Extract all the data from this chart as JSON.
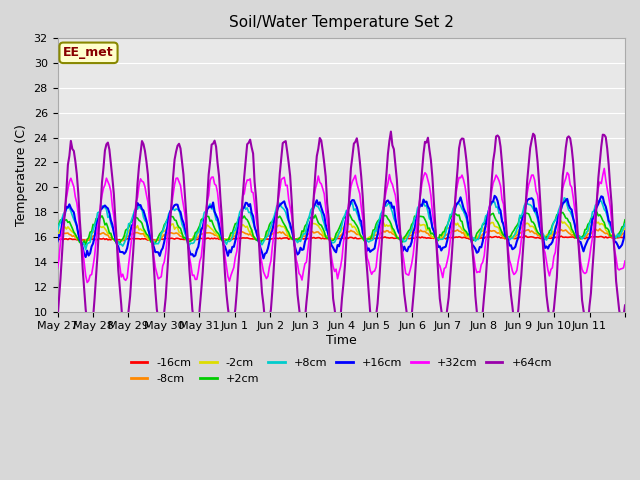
{
  "title": "Soil/Water Temperature Set 2",
  "xlabel": "Time",
  "ylabel": "Temperature (C)",
  "ylim": [
    10,
    32
  ],
  "yticks": [
    10,
    12,
    14,
    16,
    18,
    20,
    22,
    24,
    26,
    28,
    30,
    32
  ],
  "station_label": "EE_met",
  "series": [
    {
      "label": "-16cm",
      "color": "#ff0000"
    },
    {
      "label": "-8cm",
      "color": "#ff8800"
    },
    {
      "label": "-2cm",
      "color": "#dddd00"
    },
    {
      "label": "+2cm",
      "color": "#00cc00"
    },
    {
      "label": "+8cm",
      "color": "#00cccc"
    },
    {
      "label": "+16cm",
      "color": "#0000ff"
    },
    {
      "label": "+32cm",
      "color": "#ff00ff"
    },
    {
      "label": "+64cm",
      "color": "#9900aa"
    }
  ],
  "x_tick_labels": [
    "May 27",
    "May 28",
    "May 29",
    "May 30",
    "May 31",
    "Jun 1",
    "Jun 2",
    "Jun 3",
    "Jun 4",
    "Jun 5",
    "Jun 6",
    "Jun 7",
    "Jun 8",
    "Jun 9",
    "Jun 10",
    "Jun 11"
  ]
}
